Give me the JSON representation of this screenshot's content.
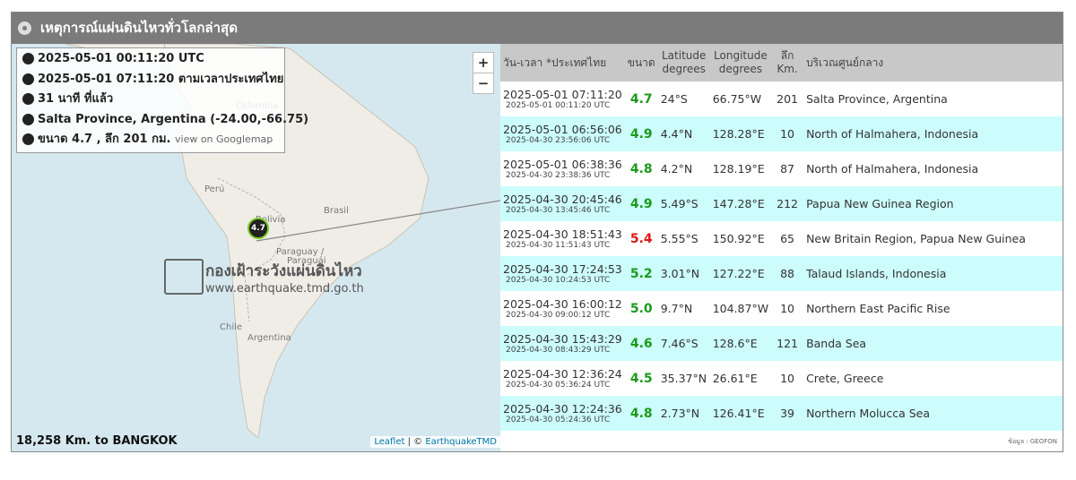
{
  "header": {
    "title": "เหตุการณ์แผ่นดินไหวทั่วโลกล่าสุด"
  },
  "map": {
    "info": [
      "2025-05-01 00:11:20 UTC",
      "2025-05-01 07:11:20 ตามเวลาประเทศไทย",
      "31 นาที ที่แล้ว",
      "Salta Province, Argentina (-24.00,-66.75)",
      "ขนาด 4.7 , ลึก 201 กม."
    ],
    "info_link": "view on Googlemap",
    "zoom_in": "+",
    "zoom_out": "−",
    "labels": [
      "Colombia",
      "Perú",
      "Brasil",
      "Bolivia",
      "Paraguay /",
      "Paraguái",
      "Chile",
      "Argentina"
    ],
    "marker": "4.7",
    "watermark": {
      "title": "กองเฝ้าระวังแผ่นดินไหว",
      "url": "www.earthquake.tmd.go.th"
    },
    "distance": "18,258 Km. to BANGKOK",
    "attribution": {
      "leaflet": "Leaflet",
      "sep": " | © ",
      "link": "EarthquakeTMD"
    }
  },
  "table": {
    "columns": [
      [
        "วัน-เวลา *ประเทศไทย"
      ],
      [
        "ขนาด"
      ],
      [
        "Latitude",
        "degrees"
      ],
      [
        "Longitude",
        "degrees"
      ],
      [
        "ลึก",
        "Km."
      ],
      [
        "บริเวณศูนย์กลาง"
      ]
    ],
    "rows": [
      {
        "time": "2025-05-01 07:11:20",
        "utc": "2025-05-01 00:11:20 UTC",
        "mag": "4.7",
        "mag_color": "#1a9a1a",
        "lat": "24°S",
        "lon": "66.75°W",
        "depth": "201",
        "region": "Salta Province, Argentina"
      },
      {
        "time": "2025-05-01 06:56:06",
        "utc": "2025-04-30 23:56:06 UTC",
        "mag": "4.9",
        "mag_color": "#1a9a1a",
        "lat": "4.4°N",
        "lon": "128.28°E",
        "depth": "10",
        "region": "North of Halmahera, Indonesia"
      },
      {
        "time": "2025-05-01 06:38:36",
        "utc": "2025-04-30 23:38:36 UTC",
        "mag": "4.8",
        "mag_color": "#1a9a1a",
        "lat": "4.2°N",
        "lon": "128.19°E",
        "depth": "87",
        "region": "North of Halmahera, Indonesia"
      },
      {
        "time": "2025-04-30 20:45:46",
        "utc": "2025-04-30 13:45:46 UTC",
        "mag": "4.9",
        "mag_color": "#1a9a1a",
        "lat": "5.49°S",
        "lon": "147.28°E",
        "depth": "212",
        "region": "Papua New Guinea Region"
      },
      {
        "time": "2025-04-30 18:51:43",
        "utc": "2025-04-30 11:51:43 UTC",
        "mag": "5.4",
        "mag_color": "#e01818",
        "lat": "5.55°S",
        "lon": "150.92°E",
        "depth": "65",
        "region": "New Britain Region, Papua New Guinea"
      },
      {
        "time": "2025-04-30 17:24:53",
        "utc": "2025-04-30 10:24:53 UTC",
        "mag": "5.2",
        "mag_color": "#1a9a1a",
        "lat": "3.01°N",
        "lon": "127.22°E",
        "depth": "88",
        "region": "Talaud Islands, Indonesia"
      },
      {
        "time": "2025-04-30 16:00:12",
        "utc": "2025-04-30 09:00:12 UTC",
        "mag": "5.0",
        "mag_color": "#1a9a1a",
        "lat": "9.7°N",
        "lon": "104.87°W",
        "depth": "10",
        "region": "Northern East Pacific Rise"
      },
      {
        "time": "2025-04-30 15:43:29",
        "utc": "2025-04-30 08:43:29 UTC",
        "mag": "4.6",
        "mag_color": "#1a9a1a",
        "lat": "7.46°S",
        "lon": "128.6°E",
        "depth": "121",
        "region": "Banda Sea"
      },
      {
        "time": "2025-04-30 12:36:24",
        "utc": "2025-04-30 05:36:24 UTC",
        "mag": "4.5",
        "mag_color": "#1a9a1a",
        "lat": "35.37°N",
        "lon": "26.61°E",
        "depth": "10",
        "region": "Crete, Greece"
      },
      {
        "time": "2025-04-30 12:24:36",
        "utc": "2025-04-30 05:24:36 UTC",
        "mag": "4.8",
        "mag_color": "#1a9a1a",
        "lat": "2.73°N",
        "lon": "126.41°E",
        "depth": "39",
        "region": "Northern Molucca Sea"
      }
    ],
    "source": "ข้อมูล : GEOFON"
  }
}
